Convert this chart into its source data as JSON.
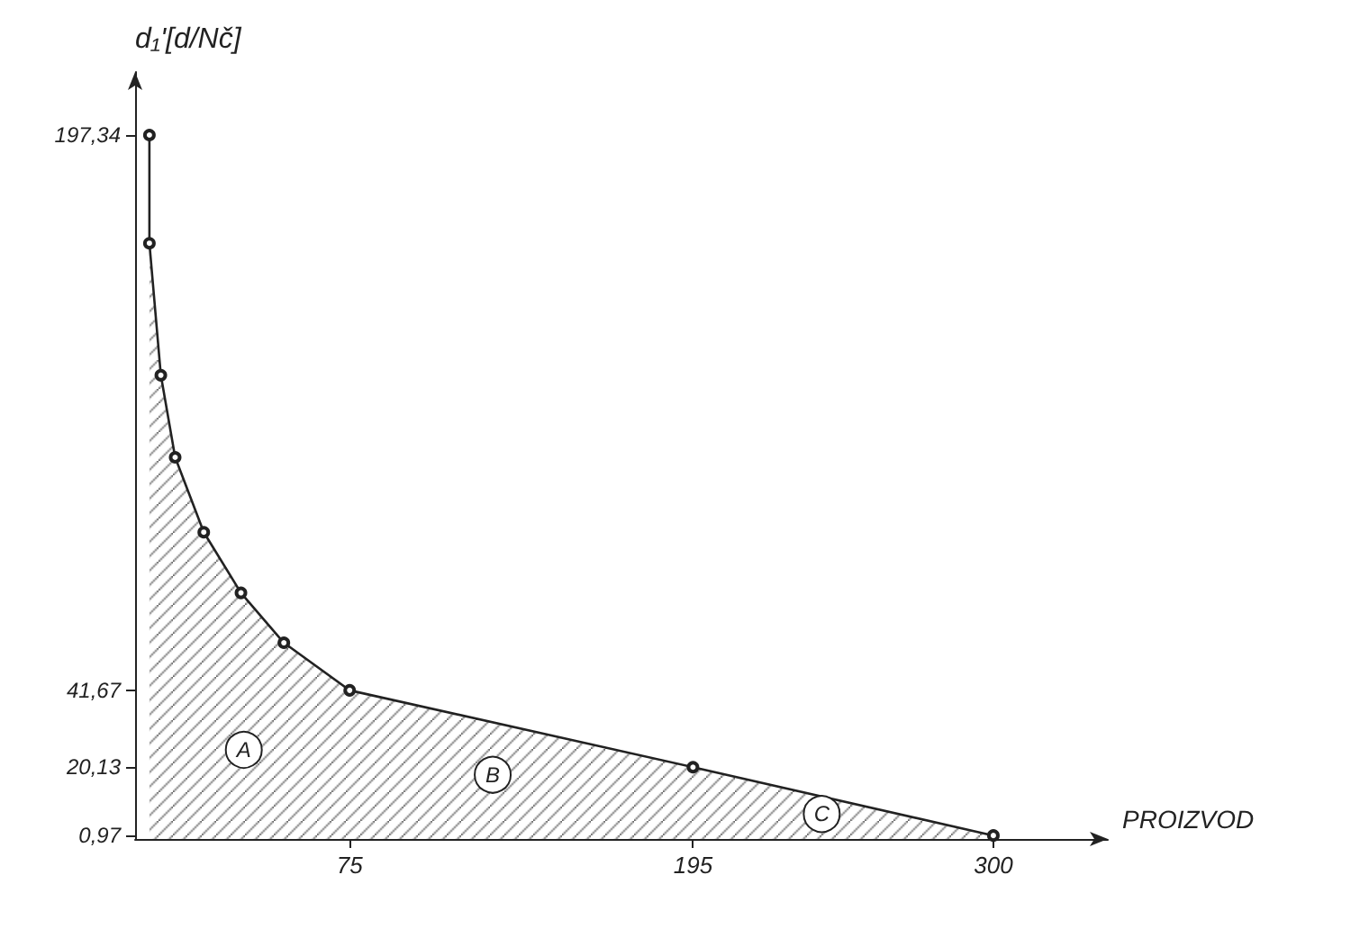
{
  "chart_data": {
    "type": "area",
    "xlabel": "PROIZVOD",
    "ylabel": "d₁'[d/Nč]",
    "x": [
      5,
      5,
      9,
      14,
      24,
      37,
      52,
      75,
      195,
      300
    ],
    "series": [
      {
        "color": "#222222",
        "values": [
          197.34,
          167,
          130,
          107,
          86,
          69,
          55,
          41.67,
          20.13,
          0.97
        ]
      }
    ],
    "xlim": [
      0,
      340
    ],
    "ylim": [
      0,
      215
    ],
    "xticks": [
      75,
      195,
      300
    ],
    "yticks": [
      {
        "value": 0.97,
        "label": "0,97"
      },
      {
        "value": 20.13,
        "label": "20,13"
      },
      {
        "value": 41.67,
        "label": "41,67"
      },
      {
        "value": 197.34,
        "label": "197,34"
      }
    ],
    "annotations": [
      {
        "text": "A",
        "x": 38,
        "y": 25
      },
      {
        "text": "B",
        "x": 125,
        "y": 18
      },
      {
        "text": "C",
        "x": 240,
        "y": 7
      }
    ],
    "marker": "circle",
    "grid": false
  }
}
